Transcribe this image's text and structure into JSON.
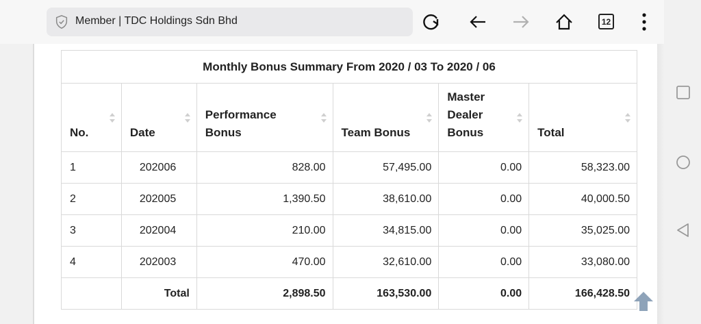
{
  "browser": {
    "url_text": "Member | TDC Holdings Sdn Bhd",
    "tab_count": "12"
  },
  "table": {
    "caption": "Monthly Bonus Summary From 2020 / 03 To 2020 / 06",
    "headers": {
      "no": "No.",
      "date": "Date",
      "performance_1": "Performance",
      "performance_2": "Bonus",
      "team": "Team Bonus",
      "master_1": "Master",
      "master_2": "Dealer",
      "master_3": "Bonus",
      "total": "Total"
    },
    "rows": [
      {
        "no": "1",
        "date": "202006",
        "performance": "828.00",
        "team": "57,495.00",
        "master": "0.00",
        "total": "58,323.00"
      },
      {
        "no": "2",
        "date": "202005",
        "performance": "1,390.50",
        "team": "38,610.00",
        "master": "0.00",
        "total": "40,000.50"
      },
      {
        "no": "3",
        "date": "202004",
        "performance": "210.00",
        "team": "34,815.00",
        "master": "0.00",
        "total": "35,025.00"
      },
      {
        "no": "4",
        "date": "202003",
        "performance": "470.00",
        "team": "32,610.00",
        "master": "0.00",
        "total": "33,080.00"
      }
    ],
    "totals": {
      "label": "Total",
      "performance": "2,898.50",
      "team": "163,530.00",
      "master": "0.00",
      "total": "166,428.50"
    }
  },
  "icons": {
    "shield": "shield-check-icon",
    "reload": "reload-icon",
    "back": "arrow-left-icon",
    "forward": "arrow-right-icon",
    "home": "home-icon",
    "menu": "more-vertical-icon",
    "scroll_top": "arrow-up-icon",
    "nav_recent": "square-icon",
    "nav_home": "circle-icon",
    "nav_back": "triangle-back-icon"
  },
  "colors": {
    "urlbar_bg": "#e9e9eb",
    "forward_disabled": "#b0b0b0",
    "scroll_top": "#7a93ad"
  }
}
